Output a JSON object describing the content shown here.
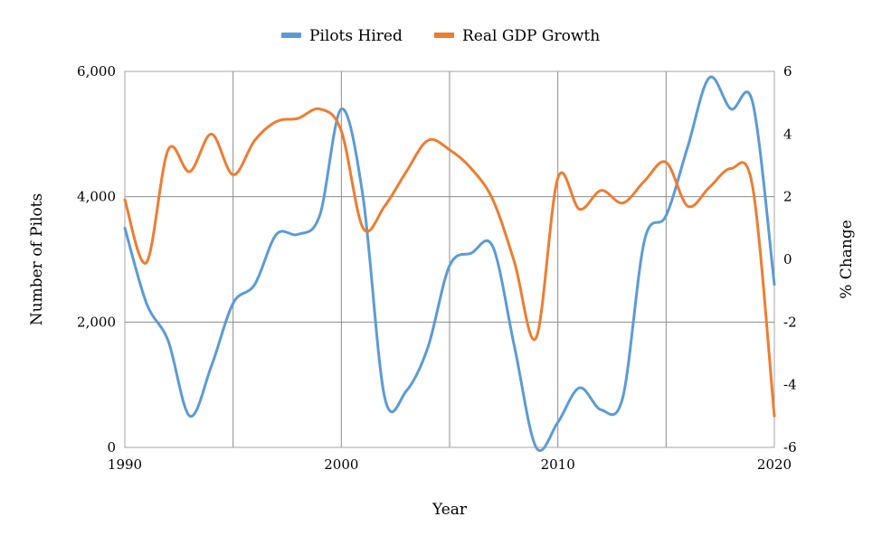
{
  "chart_data": {
    "type": "line",
    "xlabel": "Year",
    "ylabel_left": "Number of Pilots",
    "ylabel_right": "% Change",
    "x_range": [
      1990,
      2020
    ],
    "x_ticks": [
      "1990",
      "2000",
      "2010",
      "2020"
    ],
    "x_tick_values": [
      1990,
      2000,
      2010,
      2020
    ],
    "x_gridlines": [
      1990,
      1995,
      2000,
      2005,
      2010,
      2015,
      2020
    ],
    "y_left_range": [
      0,
      6000
    ],
    "y_left_ticks": [
      "0",
      "2,000",
      "4,000",
      "6,000"
    ],
    "y_left_tick_values": [
      0,
      2000,
      4000,
      6000
    ],
    "y_right_range": [
      -6,
      6
    ],
    "y_right_ticks": [
      "-6",
      "-4",
      "-2",
      "0",
      "2",
      "4",
      "6"
    ],
    "y_right_tick_values": [
      -6,
      -4,
      -2,
      0,
      2,
      4,
      6
    ],
    "grid": true,
    "legend_position": "top",
    "series": [
      {
        "name": "Pilots Hired",
        "axis": "left",
        "color": "#5B9BD5",
        "x": [
          1990,
          1991,
          1992,
          1993,
          1994,
          1995,
          1996,
          1997,
          1998,
          1999,
          2000,
          2001,
          2002,
          2003,
          2004,
          2005,
          2006,
          2007,
          2008,
          2009,
          2010,
          2011,
          2012,
          2013,
          2014,
          2015,
          2016,
          2017,
          2018,
          2019,
          2020
        ],
        "y": [
          3500,
          2300,
          1700,
          500,
          1300,
          2300,
          2600,
          3400,
          3400,
          3700,
          5400,
          4000,
          800,
          900,
          1600,
          2900,
          3100,
          3200,
          1600,
          0,
          400,
          950,
          600,
          800,
          3300,
          3700,
          4800,
          5900,
          5400,
          5500,
          2600
        ]
      },
      {
        "name": "Real GDP Growth",
        "axis": "right",
        "color": "#ED7D31",
        "x": [
          1990,
          1991,
          1992,
          1993,
          1994,
          1995,
          1996,
          1997,
          1998,
          1999,
          2000,
          2001,
          2002,
          2003,
          2004,
          2005,
          2006,
          2007,
          2008,
          2009,
          2010,
          2011,
          2012,
          2013,
          2014,
          2015,
          2016,
          2017,
          2018,
          2019,
          2020
        ],
        "y": [
          1.9,
          -0.1,
          3.5,
          2.8,
          4.0,
          2.7,
          3.8,
          4.4,
          4.5,
          4.8,
          4.1,
          1.0,
          1.7,
          2.8,
          3.8,
          3.5,
          2.9,
          1.9,
          -0.1,
          -2.5,
          2.6,
          1.6,
          2.2,
          1.8,
          2.5,
          3.1,
          1.7,
          2.3,
          2.9,
          2.3,
          -5.0
        ]
      }
    ]
  }
}
